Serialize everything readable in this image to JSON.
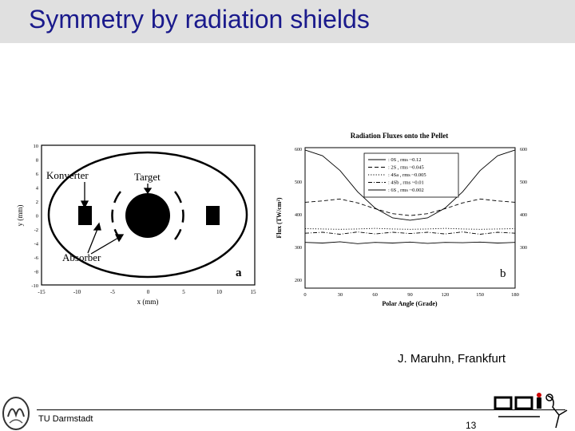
{
  "slide": {
    "title": "Symmetry by radiation shields",
    "credit": "J. Maruhn, Frankfurt",
    "footer_left": "TU Darmstadt",
    "page_number": "13"
  },
  "figure_a": {
    "xlabel": "x (mm)",
    "ylabel": "y (mm)",
    "panel_label": "a",
    "xticks": [
      "-15",
      "-10",
      "-5",
      "0",
      "5",
      "10",
      "15"
    ],
    "yticks": [
      "10",
      "8",
      "6",
      "4",
      "2",
      "0",
      "-2",
      "-4",
      "-6",
      "-8",
      "-10"
    ],
    "labels": {
      "konverter": "Konverter",
      "target": "Target",
      "absorber": "Absorber"
    }
  },
  "chart_data": {
    "type": "line",
    "title": "Radiation Fluxes onto the Pellet",
    "xlabel": "Polar Angle (Grade)",
    "ylabel": "Flux (TW/cm²)",
    "xlim": [
      0,
      180
    ],
    "ylim": [
      175,
      605
    ],
    "xticks": [
      "0",
      "30",
      "60",
      "90",
      "120",
      "150",
      "180"
    ],
    "yticks": [
      "600",
      "500",
      "400",
      "300",
      "200"
    ],
    "yticks_right": [
      "600",
      "500",
      "400",
      "300"
    ],
    "panel_label": "b",
    "legend_position": "top-center",
    "x": [
      0,
      15,
      30,
      45,
      60,
      75,
      90,
      105,
      120,
      135,
      150,
      165,
      180
    ],
    "series": [
      {
        "name": ": 0S , rms ~0.12",
        "style": "solid",
        "values": [
          598,
          580,
          535,
          470,
          420,
          390,
          383,
          390,
          420,
          470,
          535,
          580,
          598
        ]
      },
      {
        "name": ": 2S , rms ~0.045",
        "style": "dashed",
        "values": [
          438,
          442,
          448,
          436,
          418,
          403,
          397,
          403,
          418,
          436,
          448,
          442,
          438
        ]
      },
      {
        "name": ": 4Sa , rms ~0.005",
        "style": "dotted",
        "values": [
          357,
          356,
          355,
          356,
          358,
          356,
          355,
          356,
          358,
          356,
          355,
          356,
          357
        ]
      },
      {
        "name": ": 4Sb , rms ~0.01",
        "style": "dashdot",
        "values": [
          343,
          346,
          340,
          347,
          341,
          346,
          342,
          346,
          341,
          347,
          340,
          346,
          343
        ]
      },
      {
        "name": ": 6S , rms ~0.002",
        "style": "solid",
        "values": [
          315,
          313,
          317,
          311,
          315,
          313,
          316,
          312,
          315,
          314,
          316,
          313,
          315
        ]
      }
    ]
  }
}
